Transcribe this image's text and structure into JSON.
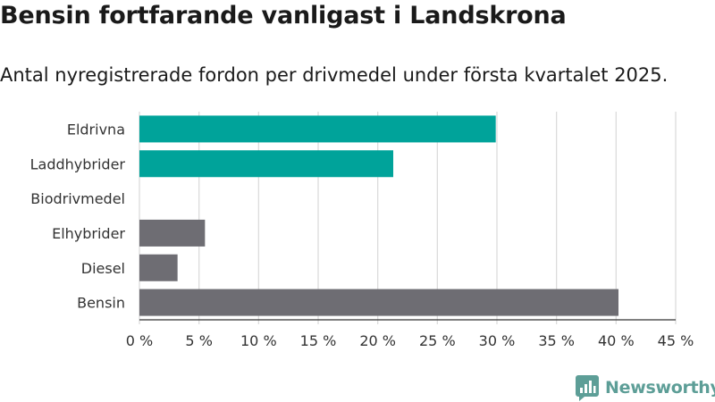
{
  "title": "Bensin fortfarande vanligast i Landskrona",
  "subtitle": "Antal nyregistrerade fordon per drivmedel under första kvartalet 2025.",
  "brand": {
    "name": "Newsworthy",
    "icon": "bar-chart-logo-icon",
    "color": "#5d9e97"
  },
  "colors": {
    "electric": "#00a39a",
    "fossil": "#6e6d73",
    "grid": "#dcdcdc"
  },
  "chart_data": {
    "type": "bar",
    "orientation": "horizontal",
    "categories": [
      "Eldrivna",
      "Laddhybrider",
      "Biodrivmedel",
      "Elhybrider",
      "Diesel",
      "Bensin"
    ],
    "values": [
      29.9,
      21.3,
      0,
      5.5,
      3.2,
      40.2
    ],
    "bar_groups": [
      "electric",
      "electric",
      "electric",
      "fossil",
      "fossil",
      "fossil"
    ],
    "xlim": [
      0,
      45
    ],
    "xticks": [
      0,
      5,
      10,
      15,
      20,
      25,
      30,
      35,
      40,
      45
    ],
    "xtick_labels": [
      "0 %",
      "5 %",
      "10 %",
      "15 %",
      "20 %",
      "25 %",
      "30 %",
      "35 %",
      "40 %",
      "45 %"
    ],
    "grid": "vertical",
    "legend": "none"
  }
}
